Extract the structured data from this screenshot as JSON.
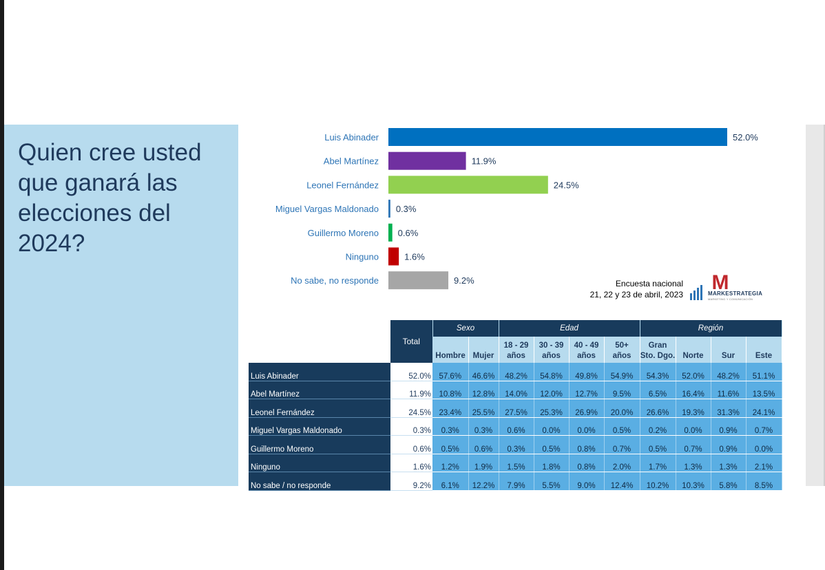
{
  "question": "Quien cree usted que ganará las elecciones del 2024?",
  "survey_note": {
    "line1": "Encuesta nacional",
    "line2": "21, 22 y 23 de abril, 2023"
  },
  "logo": {
    "name": "MARKESTRATEGIA",
    "tagline": "MARKETING Y COMUNICACIÓN",
    "letter": "M"
  },
  "chart_data": {
    "type": "bar",
    "orientation": "horizontal",
    "categories": [
      "Luis Abinader",
      "Abel Martínez",
      "Leonel Fernández",
      "Miguel Vargas Maldonado",
      "Guillermo Moreno",
      "Ninguno",
      "No sabe, no responde"
    ],
    "values": [
      52.0,
      11.9,
      24.5,
      0.3,
      0.6,
      1.6,
      9.2
    ],
    "value_labels": [
      "52.0%",
      "11.9%",
      "24.5%",
      "0.3%",
      "0.6%",
      "1.6%",
      "9.2%"
    ],
    "colors": [
      "#0070c0",
      "#7030a0",
      "#92d050",
      "#2e75b6",
      "#00b050",
      "#c00000",
      "#a6a6a6"
    ],
    "xlim": [
      0,
      52
    ],
    "title": "",
    "xlabel": "",
    "ylabel": ""
  },
  "table": {
    "total_header": "Total",
    "groups": [
      "Sexo",
      "Edad",
      "Región"
    ],
    "subheaders": [
      [
        "Hombre"
      ],
      [
        "Mujer"
      ],
      [
        "18 - 29",
        "años"
      ],
      [
        "30 - 39",
        "años"
      ],
      [
        "40 - 49",
        "años"
      ],
      [
        "50+",
        "años"
      ],
      [
        "Gran",
        "Sto. Dgo."
      ],
      [
        "Norte"
      ],
      [
        "Sur"
      ],
      [
        "Este"
      ]
    ],
    "rows": [
      {
        "name": "Luis Abinader",
        "total": "52.0%",
        "cells": [
          "57.6%",
          "46.6%",
          "48.2%",
          "54.8%",
          "49.8%",
          "54.9%",
          "54.3%",
          "52.0%",
          "48.2%",
          "51.1%"
        ]
      },
      {
        "name": "Abel Martínez",
        "total": "11.9%",
        "cells": [
          "10.8%",
          "12.8%",
          "14.0%",
          "12.0%",
          "12.7%",
          "9.5%",
          "6.5%",
          "16.4%",
          "11.6%",
          "13.5%"
        ]
      },
      {
        "name": "Leonel Fernández",
        "total": "24.5%",
        "cells": [
          "23.4%",
          "25.5%",
          "27.5%",
          "25.3%",
          "26.9%",
          "20.0%",
          "26.6%",
          "19.3%",
          "31.3%",
          "24.1%"
        ]
      },
      {
        "name": "Miguel Vargas Maldonado",
        "total": "0.3%",
        "cells": [
          "0.3%",
          "0.3%",
          "0.6%",
          "0.0%",
          "0.0%",
          "0.5%",
          "0.2%",
          "0.0%",
          "0.9%",
          "0.7%"
        ]
      },
      {
        "name": "Guillermo Moreno",
        "total": "0.6%",
        "cells": [
          "0.5%",
          "0.6%",
          "0.3%",
          "0.5%",
          "0.8%",
          "0.7%",
          "0.5%",
          "0.7%",
          "0.9%",
          "0.0%"
        ]
      },
      {
        "name": "Ninguno",
        "total": "1.6%",
        "cells": [
          "1.2%",
          "1.9%",
          "1.5%",
          "1.8%",
          "0.8%",
          "2.0%",
          "1.7%",
          "1.3%",
          "1.3%",
          "2.1%"
        ]
      },
      {
        "name": "No sabe / no responde",
        "total": "9.2%",
        "cells": [
          "6.1%",
          "12.2%",
          "7.9%",
          "5.5%",
          "9.0%",
          "12.4%",
          "10.2%",
          "10.3%",
          "5.8%",
          "8.5%"
        ]
      }
    ]
  }
}
